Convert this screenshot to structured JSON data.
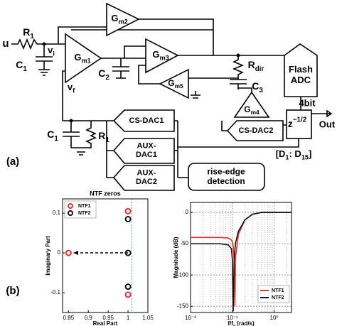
{
  "diagram": {
    "u": "u",
    "r1_in": {
      "main": "R",
      "sub": "1"
    },
    "vi": {
      "main": "v",
      "sub": "i"
    },
    "c1_in": {
      "main": "C",
      "sub": "1"
    },
    "vf": {
      "main": "v",
      "sub": "f"
    },
    "gm1": {
      "main": "G",
      "sub": "m1"
    },
    "gm2": {
      "main": "G",
      "sub": "m2"
    },
    "gm3": {
      "main": "G",
      "sub": "m3"
    },
    "gm4": {
      "main": "G",
      "sub": "m4"
    },
    "gm5": {
      "main": "G",
      "sub": "m5"
    },
    "c2": {
      "main": "C",
      "sub": "2"
    },
    "rdir": {
      "main": "R",
      "sub": "dir"
    },
    "c3": {
      "main": "C",
      "sub": "3"
    },
    "flash_adc": [
      "Flash",
      "ADC"
    ],
    "bits": "4bit",
    "out": "Out",
    "delay": {
      "main": "z",
      "sup": "−1/2"
    },
    "cs_dac1": "CS-DAC1",
    "cs_dac2": "CS-DAC2",
    "aux_dac1": [
      "AUX-",
      "DAC1"
    ],
    "aux_dac2": [
      "AUX-",
      "DAC2"
    ],
    "c1_fb": {
      "main": "C",
      "sub": "1"
    },
    "r1_fb": {
      "main": "R",
      "sub": "1"
    },
    "rise_edge": [
      "rise-edge",
      "detection"
    ],
    "dbus": {
      "main": "[D",
      "sub": "1",
      "main2": ": D",
      "sub2": "15",
      "end": "]"
    },
    "panel_a": "(a)",
    "panel_b": "(b)"
  },
  "chart_data": [
    {
      "type": "scatter",
      "title": "NTF zeros",
      "x_label": "Real Part",
      "y_label": "Imaginary Part",
      "xlim": [
        0.835,
        1.05
      ],
      "xticks": [
        0.85,
        0.9,
        0.95,
        1,
        1.05
      ],
      "ylim": [
        -0.15,
        0.136
      ],
      "yticks": [
        -0.1,
        0,
        0.1
      ],
      "grid": false,
      "legend": "upper left",
      "series": [
        {
          "name": "NTF1",
          "color": "#e8312a",
          "x": [
            0.85,
            1,
            1
          ],
          "y": [
            0,
            0.105,
            -0.105
          ]
        },
        {
          "name": "NTF2",
          "color": "#111111",
          "x": [
            1,
            1,
            1
          ],
          "y": [
            0.085,
            0,
            -0.085
          ]
        }
      ]
    },
    {
      "type": "line",
      "x_label": {
        "main": "f/f",
        "sub": "s",
        "end": " (rad/s)"
      },
      "y_label": "Magnitude (dB)",
      "xscale": "log",
      "xlim": [
        0.01,
        2.6
      ],
      "xticks": [
        {
          "value": 0.01,
          "label": "10⁻²"
        },
        {
          "value": 0.1,
          "label": "10⁻¹"
        },
        {
          "value": 1,
          "label": "10⁰"
        }
      ],
      "ylim": [
        -160,
        16
      ],
      "yticks": [
        -150,
        -100,
        -50,
        0
      ],
      "grid": true,
      "legend": "lower right",
      "series": [
        {
          "name": "NTF1",
          "color": "#e8312a",
          "x": [
            0.01,
            0.05,
            0.08,
            0.095,
            0.1,
            0.105,
            0.11,
            0.115,
            0.12,
            0.14,
            0.2,
            0.3,
            0.5,
            1,
            2.6
          ],
          "values": [
            -40,
            -40,
            -41,
            -44,
            -47,
            -55,
            -75,
            -150,
            -70,
            -35,
            -12,
            -3,
            0,
            0,
            0
          ]
        },
        {
          "name": "NTF2",
          "color": "#111111",
          "x": [
            0.01,
            0.05,
            0.08,
            0.095,
            0.1,
            0.105,
            0.11,
            0.115,
            0.12,
            0.14,
            0.2,
            0.3,
            0.5,
            1,
            2.6
          ],
          "values": [
            -50,
            -50,
            -52,
            -58,
            -75,
            -158,
            -80,
            -60,
            -48,
            -30,
            -12,
            -3,
            0,
            0,
            0
          ]
        }
      ]
    }
  ]
}
